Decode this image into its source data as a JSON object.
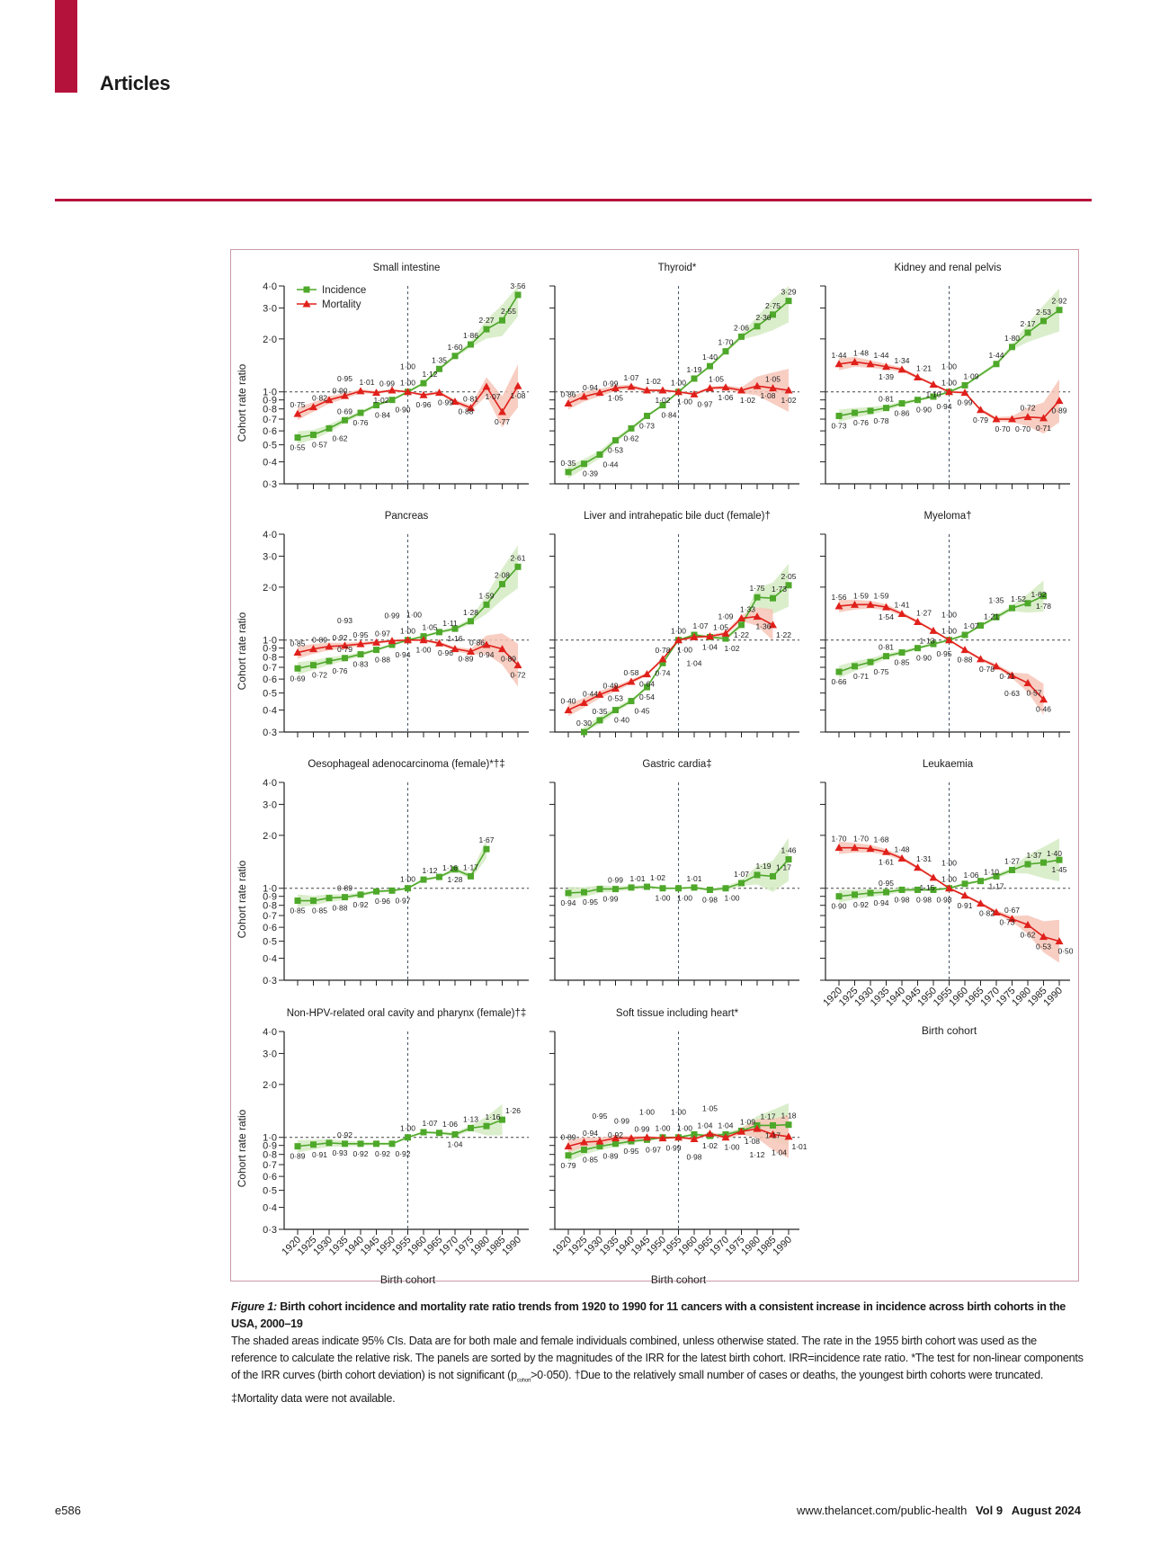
{
  "header": {
    "section": "Articles"
  },
  "colors": {
    "brand": "#b5123b",
    "incidence": "#4ea82a",
    "mortality": "#e0201b",
    "incidence_band": "#d5ebc3",
    "mortality_band": "#f7c6b8",
    "frame": "#c99aa6"
  },
  "chart_data": {
    "type": "line",
    "x": [
      1920,
      1925,
      1930,
      1935,
      1940,
      1945,
      1950,
      1955,
      1960,
      1965,
      1970,
      1975,
      1980,
      1985,
      1990
    ],
    "xlabel": "Birth cohort",
    "ylabel": "Cohort rate ratio",
    "y_scale": "log",
    "ylim": [
      0.3,
      4.0
    ],
    "yticks": [
      0.3,
      0.4,
      0.5,
      0.6,
      0.7,
      0.8,
      0.9,
      1.0,
      2.0,
      3.0,
      4.0
    ],
    "ytick_labels": [
      "0·3",
      "0·4",
      "0·5",
      "0·6",
      "0·7",
      "0·8",
      "0·9",
      "1·0",
      "2·0",
      "3·0",
      "4·0"
    ],
    "reference_line_y": 1.0,
    "reference_line_x": 1955,
    "legend": {
      "incidence": "Incidence",
      "mortality": "Mortality",
      "placement": "top-left of first panel"
    },
    "panels": [
      {
        "title": "Small intestine",
        "legend": true,
        "incidence": [
          0.55,
          0.57,
          0.62,
          0.69,
          0.76,
          0.84,
          0.9,
          1.0,
          1.12,
          1.35,
          1.6,
          1.86,
          2.27,
          2.55,
          3.56
        ],
        "mortality": [
          0.75,
          0.82,
          0.9,
          0.95,
          1.01,
          0.99,
          1.02,
          1.0,
          0.96,
          0.99,
          0.88,
          0.81,
          1.07,
          0.77,
          1.08
        ]
      },
      {
        "title": "Thyroid*",
        "incidence": [
          0.35,
          0.39,
          0.44,
          0.53,
          0.62,
          0.73,
          0.84,
          1.0,
          1.19,
          1.4,
          1.7,
          2.06,
          2.36,
          2.75,
          3.29
        ],
        "mortality": [
          0.86,
          0.94,
          0.99,
          1.05,
          1.07,
          1.02,
          1.02,
          1.0,
          0.97,
          1.05,
          1.06,
          1.02,
          1.08,
          1.05,
          1.02
        ]
      },
      {
        "title": "Kidney and renal pelvis",
        "incidence": [
          0.73,
          0.76,
          0.78,
          0.81,
          0.86,
          0.9,
          0.94,
          1.0,
          1.09,
          null,
          1.44,
          1.8,
          2.17,
          2.53,
          2.92
        ],
        "mortality": [
          1.44,
          1.48,
          1.44,
          1.39,
          1.34,
          1.21,
          1.1,
          1.0,
          0.99,
          0.79,
          0.7,
          0.7,
          0.72,
          0.71,
          0.89
        ]
      },
      {
        "title": "Pancreas",
        "incidence": [
          0.69,
          0.72,
          0.76,
          0.79,
          0.83,
          0.88,
          0.94,
          1.0,
          1.05,
          1.11,
          1.16,
          1.28,
          1.59,
          2.08,
          2.61
        ],
        "mortality": [
          0.85,
          0.89,
          0.92,
          0.93,
          0.95,
          0.97,
          0.99,
          1.0,
          1.0,
          0.96,
          0.89,
          0.86,
          0.94,
          0.89,
          0.72
        ]
      },
      {
        "title": "Liver and intrahepatic bile duct (female)†",
        "incidence": [
          null,
          0.3,
          0.35,
          0.4,
          0.45,
          0.54,
          0.74,
          1.0,
          1.07,
          1.04,
          1.02,
          1.22,
          1.75,
          1.73,
          2.05
        ],
        "mortality": [
          0.4,
          0.44,
          0.49,
          0.53,
          0.58,
          0.64,
          0.78,
          1.0,
          1.04,
          1.05,
          1.09,
          1.33,
          1.36,
          1.22,
          null
        ]
      },
      {
        "title": "Myeloma†",
        "incidence": [
          0.66,
          0.71,
          0.75,
          0.81,
          0.85,
          0.9,
          0.95,
          1.0,
          1.07,
          1.21,
          1.35,
          1.52,
          1.62,
          1.78,
          null
        ],
        "mortality": [
          1.56,
          1.59,
          1.59,
          1.54,
          1.41,
          1.27,
          1.13,
          1.0,
          0.88,
          0.78,
          0.71,
          0.63,
          0.57,
          0.46,
          null
        ]
      },
      {
        "title": "Oesophageal adenocarcinoma (female)*†‡",
        "incidence": [
          0.85,
          0.85,
          0.88,
          0.89,
          0.92,
          0.96,
          0.97,
          1.0,
          1.12,
          1.16,
          1.28,
          1.17,
          1.67,
          null,
          null
        ],
        "mortality": null
      },
      {
        "title": "Gastric cardia‡",
        "incidence": [
          0.94,
          0.95,
          0.99,
          0.99,
          1.01,
          1.02,
          1.0,
          1.0,
          1.01,
          0.98,
          1.0,
          1.07,
          1.19,
          1.17,
          1.46
        ],
        "mortality": null
      },
      {
        "title": "Leukaemia",
        "x_tick_labels": true,
        "incidence": [
          0.9,
          0.92,
          0.94,
          0.95,
          0.98,
          0.98,
          0.98,
          1.0,
          1.06,
          1.1,
          1.17,
          1.27,
          1.37,
          1.4,
          1.45
        ],
        "mortality": [
          1.7,
          1.7,
          1.68,
          1.61,
          1.48,
          1.31,
          1.15,
          1.0,
          0.91,
          0.82,
          0.73,
          0.67,
          0.62,
          0.53,
          0.5
        ]
      },
      {
        "title": "Non-HPV-related oral cavity and pharynx (female)†‡",
        "x_tick_labels": true,
        "incidence": [
          0.89,
          0.91,
          0.93,
          0.92,
          0.92,
          0.92,
          0.92,
          1.0,
          1.07,
          1.06,
          1.04,
          1.13,
          1.16,
          1.26,
          null
        ],
        "mortality": null
      },
      {
        "title": "Soft tissue including heart*",
        "x_tick_labels": true,
        "incidence": [
          0.79,
          0.85,
          0.89,
          0.92,
          0.95,
          0.97,
          1.0,
          1.0,
          1.04,
          1.02,
          1.04,
          1.09,
          1.17,
          1.17,
          1.18
        ],
        "mortality": [
          0.89,
          0.94,
          0.95,
          0.99,
          0.99,
          1.0,
          0.99,
          1.0,
          0.98,
          1.05,
          1.0,
          1.08,
          1.12,
          1.04,
          1.01
        ]
      }
    ]
  },
  "caption": {
    "label": "Figure 1:",
    "title": "Birth cohort incidence and mortality rate ratio trends from 1920 to 1990 for 11 cancers with a consistent increase in incidence across birth cohorts in the USA, 2000–19",
    "body_before": "The shaded areas indicate 95% CIs. Data are for both male and female individuals combined, unless otherwise stated. The rate in the 1955 birth cohort was used as the reference to calculate the relative risk. The panels are sorted by the magnitudes of the IRR for the latest birth cohort. IRR=incidence rate ratio. *The test for non-linear components of the IRR curves (birth cohort deviation) is not significant (p",
    "body_sub": "cohort",
    "body_after": ">0·050). †Due to the relatively small number of cases or deaths, the youngest birth cohorts were truncated. ‡Mortality data were not available."
  },
  "footer": {
    "page": "e586",
    "url": "www.thelancet.com/public-health",
    "volume": "Vol 9",
    "date": "August 2024"
  }
}
